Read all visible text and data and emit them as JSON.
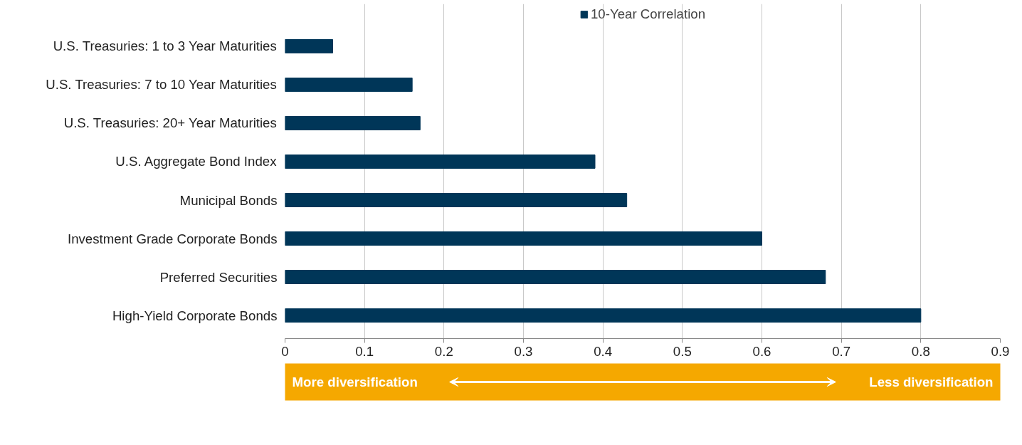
{
  "chart_data": {
    "type": "bar",
    "orientation": "horizontal",
    "categories": [
      "U.S. Treasuries: 1 to 3 Year Maturities",
      "U.S. Treasuries: 7 to 10 Year Maturities",
      "U.S. Treasuries: 20+ Year Maturities",
      "U.S. Aggregate Bond Index",
      "Municipal Bonds",
      "Investment Grade Corporate Bonds",
      "Preferred Securities",
      "High-Yield Corporate Bonds"
    ],
    "series": [
      {
        "name": "10-Year Correlation",
        "color": "#003658",
        "values": [
          0.06,
          0.16,
          0.17,
          0.39,
          0.43,
          0.6,
          0.68,
          0.8
        ]
      }
    ],
    "xlim": [
      0,
      0.9
    ],
    "xticks": [
      0,
      0.1,
      0.2,
      0.3,
      0.4,
      0.5,
      0.6,
      0.7,
      0.8,
      0.9
    ],
    "grid": "x",
    "legend": "top",
    "annotations": [
      "More diversification",
      "Less diversification"
    ]
  }
}
